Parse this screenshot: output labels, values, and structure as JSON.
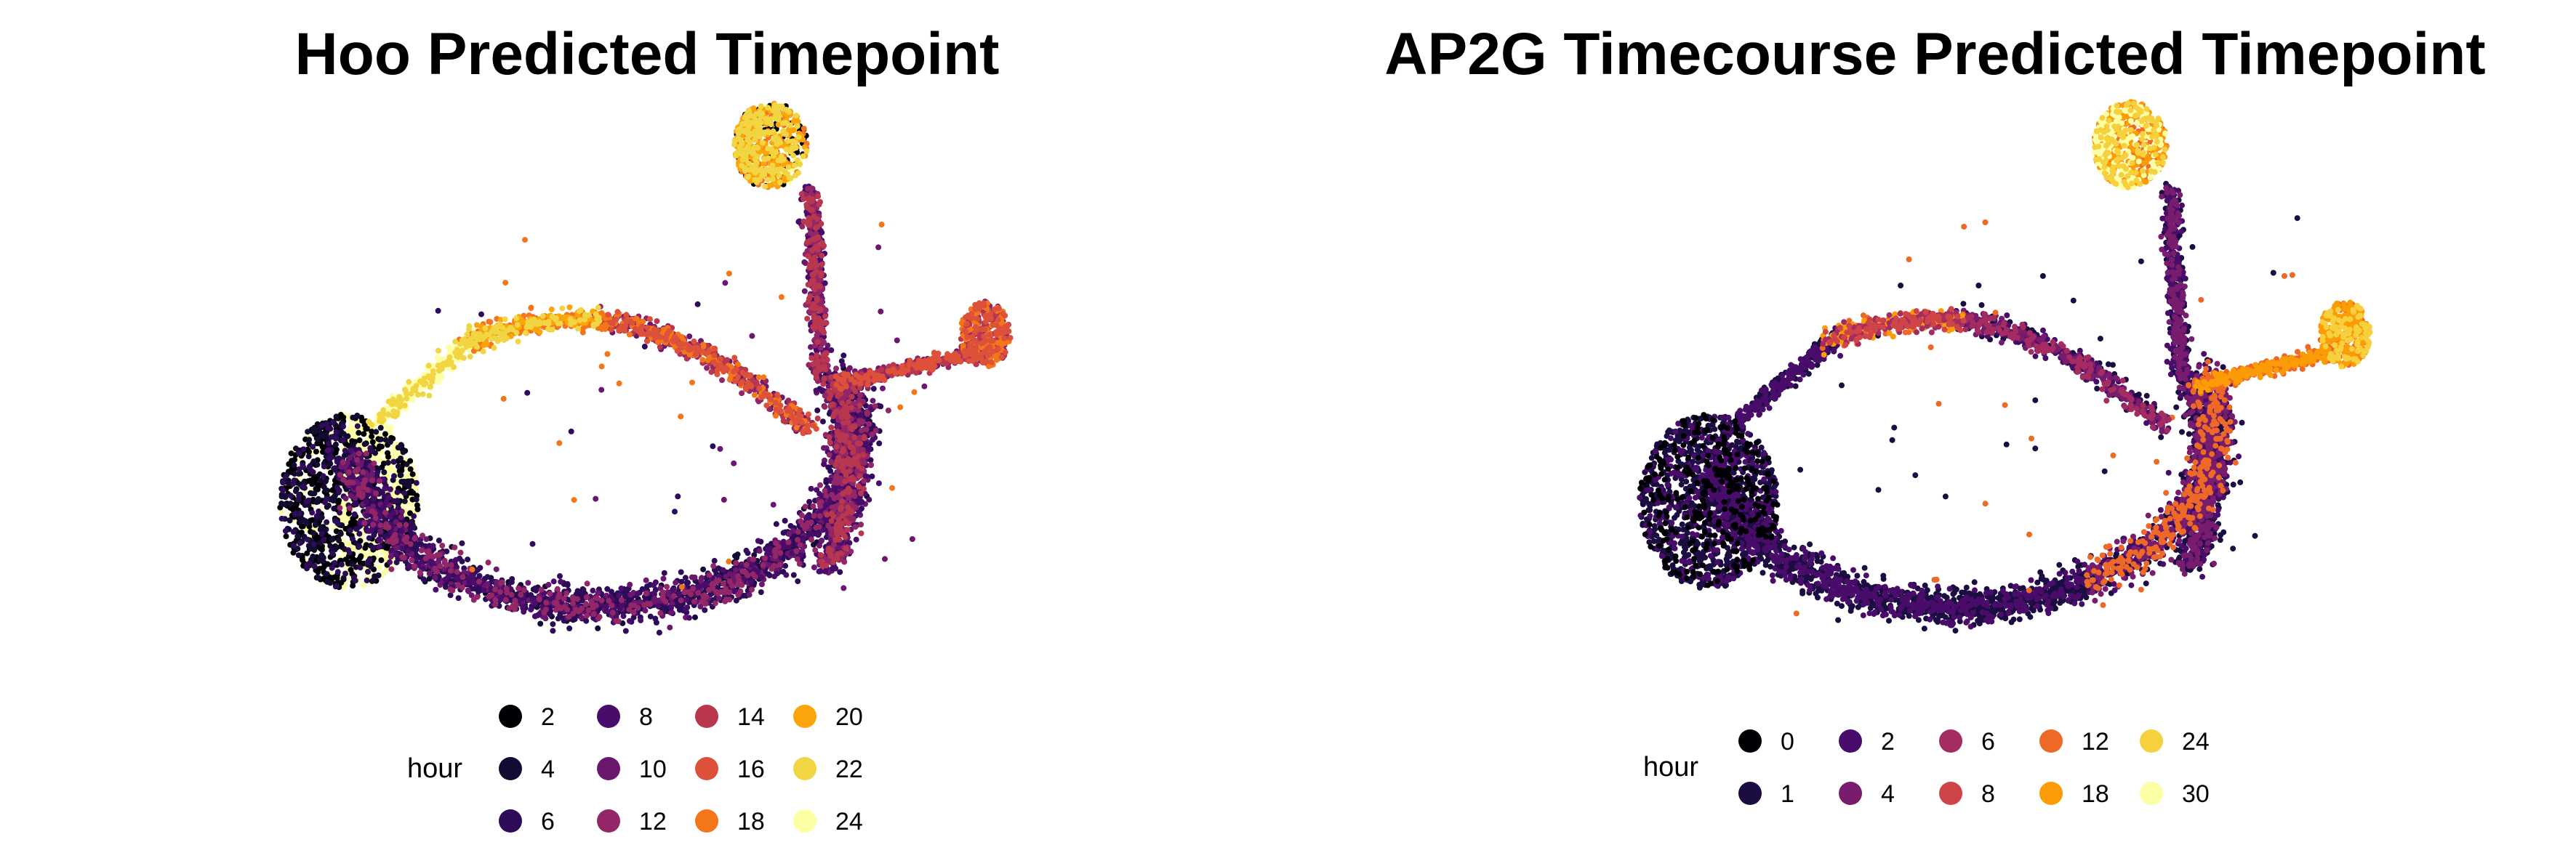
{
  "chart_data": [
    {
      "type": "scatter",
      "title": "Hoo Predicted Timepoint",
      "legend": {
        "title": "hour",
        "placement": "bottom",
        "columns": 4,
        "entries": [
          {
            "label": "2",
            "color": "#000004"
          },
          {
            "label": "4",
            "color": "#140b34"
          },
          {
            "label": "6",
            "color": "#2d0b59"
          },
          {
            "label": "8",
            "color": "#4a0c6b"
          },
          {
            "label": "10",
            "color": "#6b176e"
          },
          {
            "label": "12",
            "color": "#932667"
          },
          {
            "label": "14",
            "color": "#b8374e"
          },
          {
            "label": "16",
            "color": "#dd513a"
          },
          {
            "label": "18",
            "color": "#f3761b"
          },
          {
            "label": "20",
            "color": "#fca50a"
          },
          {
            "label": "22",
            "color": "#f2d542"
          },
          {
            "label": "24",
            "color": "#fcffa4"
          }
        ]
      },
      "axes_visible": false,
      "grid": false
    },
    {
      "type": "scatter",
      "title": "AP2G Timecourse Predicted Timepoint",
      "legend": {
        "title": "hour",
        "placement": "bottom",
        "columns": 5,
        "entries": [
          {
            "label": "0",
            "color": "#000004"
          },
          {
            "label": "1",
            "color": "#1b0c41"
          },
          {
            "label": "2",
            "color": "#4a0c6b"
          },
          {
            "label": "4",
            "color": "#781c6d"
          },
          {
            "label": "6",
            "color": "#a52c60"
          },
          {
            "label": "8",
            "color": "#cf4446"
          },
          {
            "label": "12",
            "color": "#ed6925"
          },
          {
            "label": "18",
            "color": "#fb9b06"
          },
          {
            "label": "24",
            "color": "#f7d13d"
          },
          {
            "label": "30",
            "color": "#fcffa4"
          }
        ]
      },
      "axes_visible": false,
      "grid": false
    }
  ]
}
